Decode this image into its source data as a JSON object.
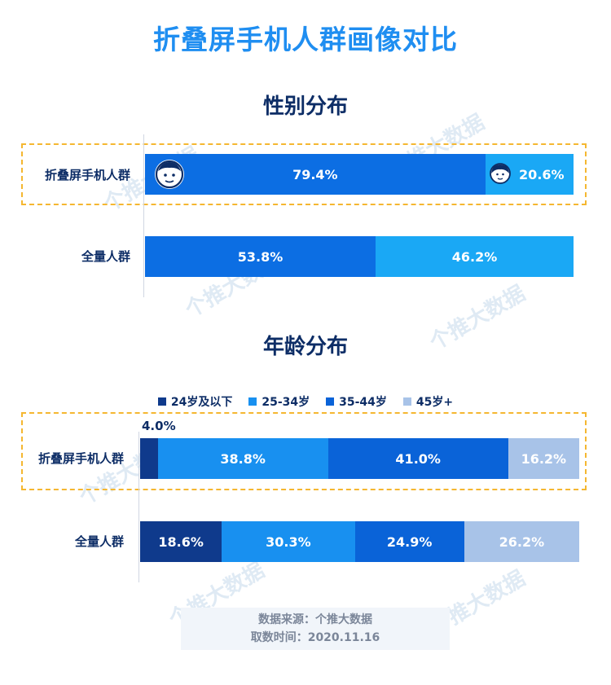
{
  "title": "折叠屏手机人群画像对比",
  "watermark": "个推大数据",
  "gender_chart": {
    "title": "性别分布",
    "type": "bar",
    "orientation": "horizontal-stacked-100",
    "categories": [
      "折叠屏手机人群",
      "全量人群"
    ],
    "series": [
      {
        "name": "男",
        "values": [
          79.4,
          53.8
        ],
        "labels": [
          "79.4%",
          "53.8%"
        ],
        "color": "#0c6ee3"
      },
      {
        "name": "女",
        "values": [
          20.6,
          46.2
        ],
        "labels": [
          "20.6%",
          "46.2%"
        ],
        "color": "#1aa8f5"
      }
    ],
    "highlight_category": "折叠屏手机人群",
    "icons": [
      "male-face-icon",
      "female-face-icon"
    ]
  },
  "age_chart": {
    "title": "年龄分布",
    "type": "bar",
    "orientation": "horizontal-stacked-100",
    "categories": [
      "折叠屏手机人群",
      "全量人群"
    ],
    "legend": [
      "24岁及以下",
      "25-34岁",
      "35-44岁",
      "45岁+"
    ],
    "legend_position": "top",
    "series": [
      {
        "name": "24岁及以下",
        "values": [
          4.0,
          18.6
        ],
        "labels": [
          "4.0%",
          "18.6%"
        ],
        "color": "#0f3a8c"
      },
      {
        "name": "25-34岁",
        "values": [
          38.8,
          30.3
        ],
        "labels": [
          "38.8%",
          "30.3%"
        ],
        "color": "#1890f0"
      },
      {
        "name": "35-44岁",
        "values": [
          41.0,
          24.9
        ],
        "labels": [
          "41.0%",
          "24.9%"
        ],
        "color": "#0a63d8"
      },
      {
        "name": "45岁+",
        "values": [
          16.2,
          26.2
        ],
        "labels": [
          "16.2%",
          "26.2%"
        ],
        "color": "#a8c3e8"
      }
    ],
    "highlight_category": "折叠屏手机人群"
  },
  "source": {
    "line1": "数据来源：个推大数据",
    "line2": "取数时间：2020.11.16"
  }
}
